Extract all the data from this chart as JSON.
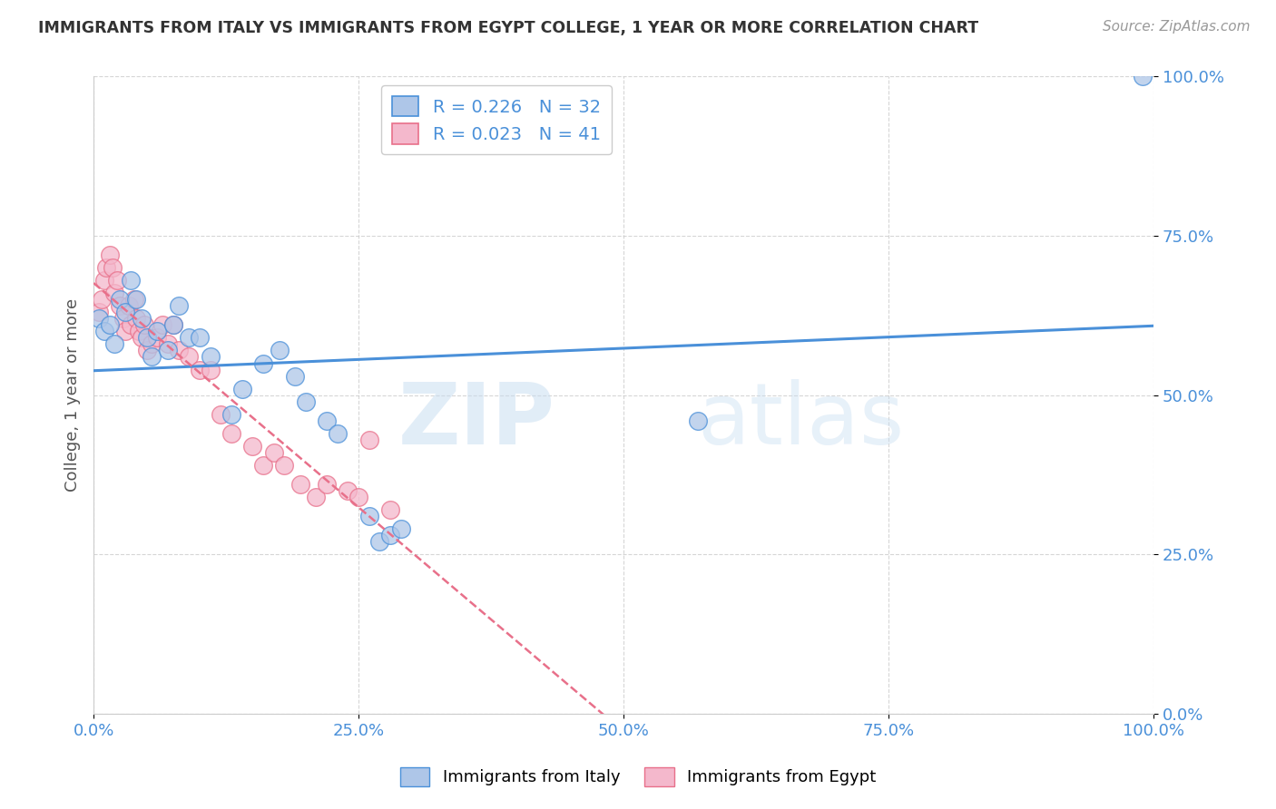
{
  "title": "IMMIGRANTS FROM ITALY VS IMMIGRANTS FROM EGYPT COLLEGE, 1 YEAR OR MORE CORRELATION CHART",
  "source": "Source: ZipAtlas.com",
  "ylabel": "College, 1 year or more",
  "xlabel": "",
  "r_italy": 0.226,
  "n_italy": 32,
  "r_egypt": 0.023,
  "n_egypt": 41,
  "italy_color": "#aec6e8",
  "egypt_color": "#f4b8cc",
  "italy_line_color": "#4a90d9",
  "egypt_line_color": "#e8708a",
  "xlim": [
    0.0,
    1.0
  ],
  "ylim": [
    0.0,
    1.0
  ],
  "xticks": [
    0.0,
    0.25,
    0.5,
    0.75,
    1.0
  ],
  "yticks": [
    0.0,
    0.25,
    0.5,
    0.75,
    1.0
  ],
  "xticklabels": [
    "0.0%",
    "25.0%",
    "50.0%",
    "75.0%",
    "100.0%"
  ],
  "yticklabels": [
    "0.0%",
    "25.0%",
    "50.0%",
    "75.0%",
    "100.0%"
  ],
  "italy_x": [
    0.005,
    0.01,
    0.015,
    0.02,
    0.025,
    0.03,
    0.035,
    0.04,
    0.045,
    0.05,
    0.055,
    0.06,
    0.07,
    0.075,
    0.08,
    0.09,
    0.1,
    0.11,
    0.13,
    0.14,
    0.16,
    0.175,
    0.19,
    0.2,
    0.22,
    0.23,
    0.26,
    0.27,
    0.28,
    0.29,
    0.57,
    0.99
  ],
  "italy_y": [
    0.62,
    0.6,
    0.61,
    0.58,
    0.65,
    0.63,
    0.68,
    0.65,
    0.62,
    0.59,
    0.56,
    0.6,
    0.57,
    0.61,
    0.64,
    0.59,
    0.59,
    0.56,
    0.47,
    0.51,
    0.55,
    0.57,
    0.53,
    0.49,
    0.46,
    0.44,
    0.31,
    0.27,
    0.28,
    0.29,
    0.46,
    1.0
  ],
  "egypt_x": [
    0.005,
    0.008,
    0.01,
    0.012,
    0.015,
    0.018,
    0.02,
    0.022,
    0.025,
    0.028,
    0.03,
    0.033,
    0.035,
    0.038,
    0.04,
    0.043,
    0.045,
    0.048,
    0.05,
    0.055,
    0.06,
    0.065,
    0.07,
    0.075,
    0.08,
    0.09,
    0.1,
    0.11,
    0.12,
    0.13,
    0.15,
    0.16,
    0.17,
    0.18,
    0.195,
    0.21,
    0.22,
    0.24,
    0.25,
    0.26,
    0.28
  ],
  "egypt_y": [
    0.63,
    0.65,
    0.68,
    0.7,
    0.72,
    0.7,
    0.66,
    0.68,
    0.64,
    0.62,
    0.6,
    0.64,
    0.61,
    0.65,
    0.62,
    0.6,
    0.59,
    0.61,
    0.57,
    0.58,
    0.59,
    0.61,
    0.58,
    0.61,
    0.57,
    0.56,
    0.54,
    0.54,
    0.47,
    0.44,
    0.42,
    0.39,
    0.41,
    0.39,
    0.36,
    0.34,
    0.36,
    0.35,
    0.34,
    0.43,
    0.32
  ],
  "background_color": "#ffffff",
  "grid_color": "#cccccc",
  "title_color": "#333333",
  "axis_label_color": "#555555",
  "tick_color": "#4a90d9",
  "watermark_zip": "ZIP",
  "watermark_atlas": "atlas",
  "legend_italy_label": "Immigrants from Italy",
  "legend_egypt_label": "Immigrants from Egypt"
}
